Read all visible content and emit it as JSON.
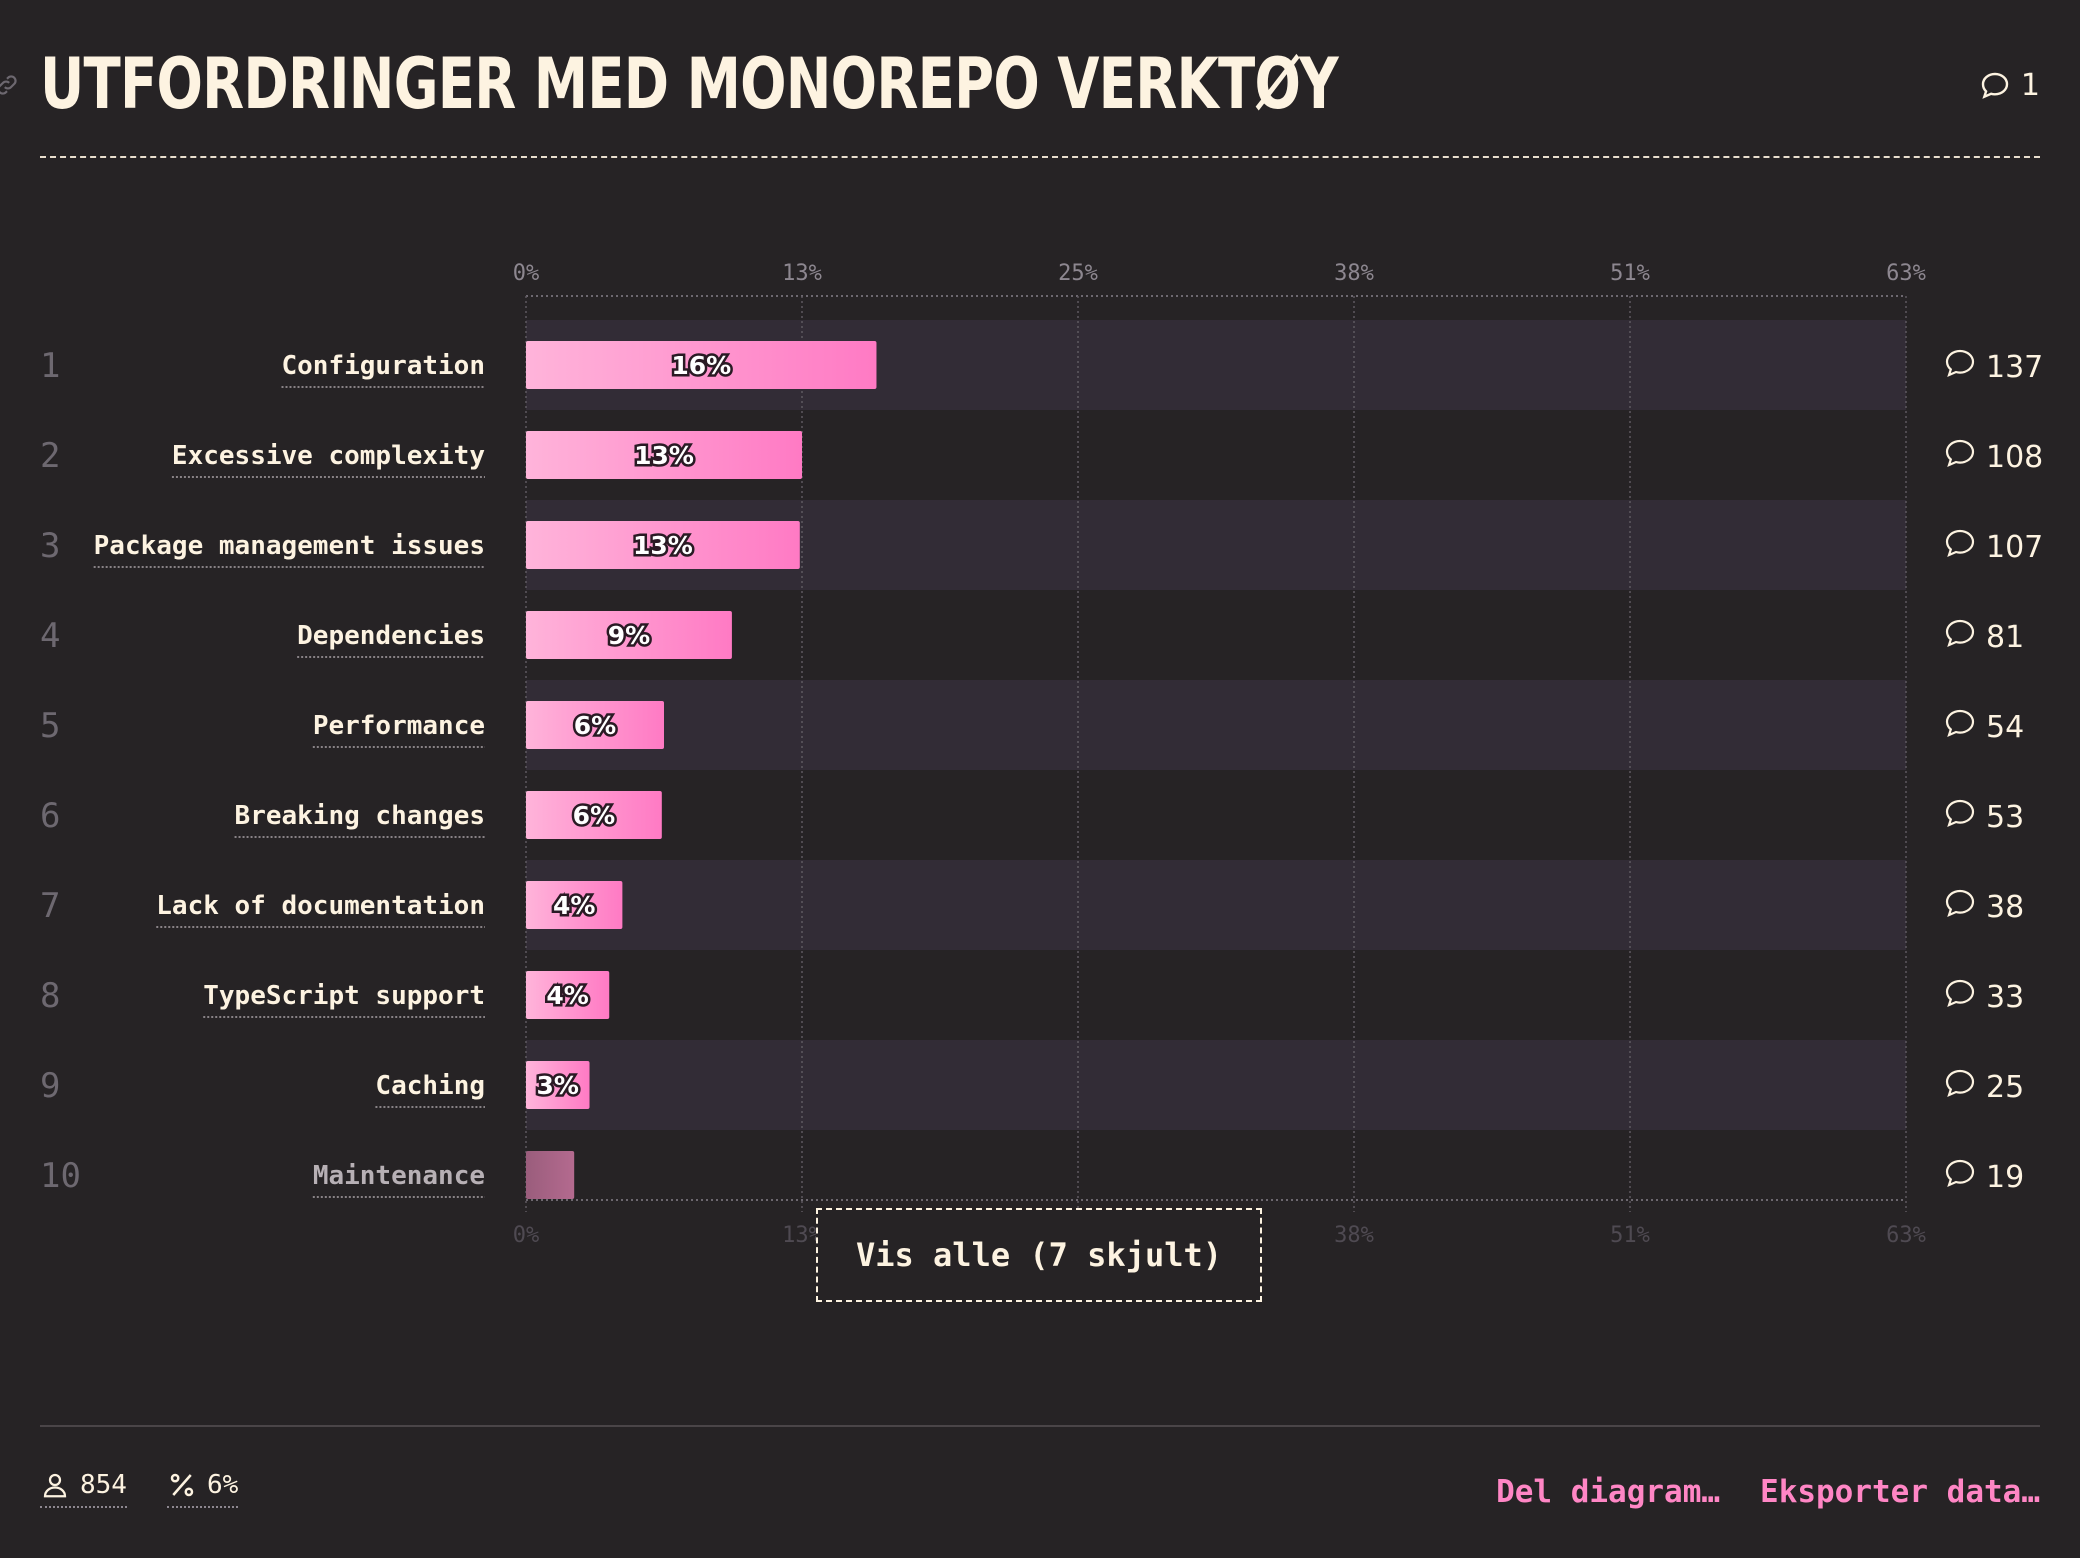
{
  "title": "UTFORDRINGER MED MONOREPO VERKTØY",
  "header_comment_count": "1",
  "show_all_label": "Vis alle (7 skjult)",
  "footer": {
    "respondents": "854",
    "percent": "6%",
    "share_label": "Del diagram…",
    "export_label": "Eksporter data…"
  },
  "colors": {
    "background": "#262325",
    "bar_light": "#ffb4da",
    "bar_dark": "#ff7ac4",
    "bar_muted": "#b46a8f",
    "row_stripe": "#322c36",
    "accent": "#ff86c5"
  },
  "icons": [
    "link-icon",
    "comment-icon",
    "user-icon",
    "percent-icon"
  ],
  "chart_data": {
    "type": "bar",
    "orientation": "horizontal",
    "xlim": [
      0,
      63
    ],
    "x_ticks": [
      "0%",
      "13%",
      "25%",
      "38%",
      "51%",
      "63%"
    ],
    "x_tick_values": [
      0,
      12.6,
      25.2,
      37.8,
      50.4,
      63
    ],
    "grid": true,
    "rows": [
      {
        "rank": "1",
        "label": "Configuration",
        "value": 16,
        "value_label": "16%",
        "comments": "137"
      },
      {
        "rank": "2",
        "label": "Excessive complexity",
        "value": 12.6,
        "value_label": "13%",
        "comments": "108"
      },
      {
        "rank": "3",
        "label": "Package management issues",
        "value": 12.5,
        "value_label": "13%",
        "comments": "107"
      },
      {
        "rank": "4",
        "label": "Dependencies",
        "value": 9.4,
        "value_label": "9%",
        "comments": "81"
      },
      {
        "rank": "5",
        "label": "Performance",
        "value": 6.3,
        "value_label": "6%",
        "comments": "54"
      },
      {
        "rank": "6",
        "label": "Breaking changes",
        "value": 6.2,
        "value_label": "6%",
        "comments": "53"
      },
      {
        "rank": "7",
        "label": "Lack of documentation",
        "value": 4.4,
        "value_label": "4%",
        "comments": "38"
      },
      {
        "rank": "8",
        "label": "TypeScript support",
        "value": 3.8,
        "value_label": "4%",
        "comments": "33"
      },
      {
        "rank": "9",
        "label": "Caching",
        "value": 2.9,
        "value_label": "3%",
        "comments": "25"
      },
      {
        "rank": "10",
        "label": "Maintenance",
        "value": 2.2,
        "value_label": "",
        "comments": "19"
      }
    ]
  }
}
